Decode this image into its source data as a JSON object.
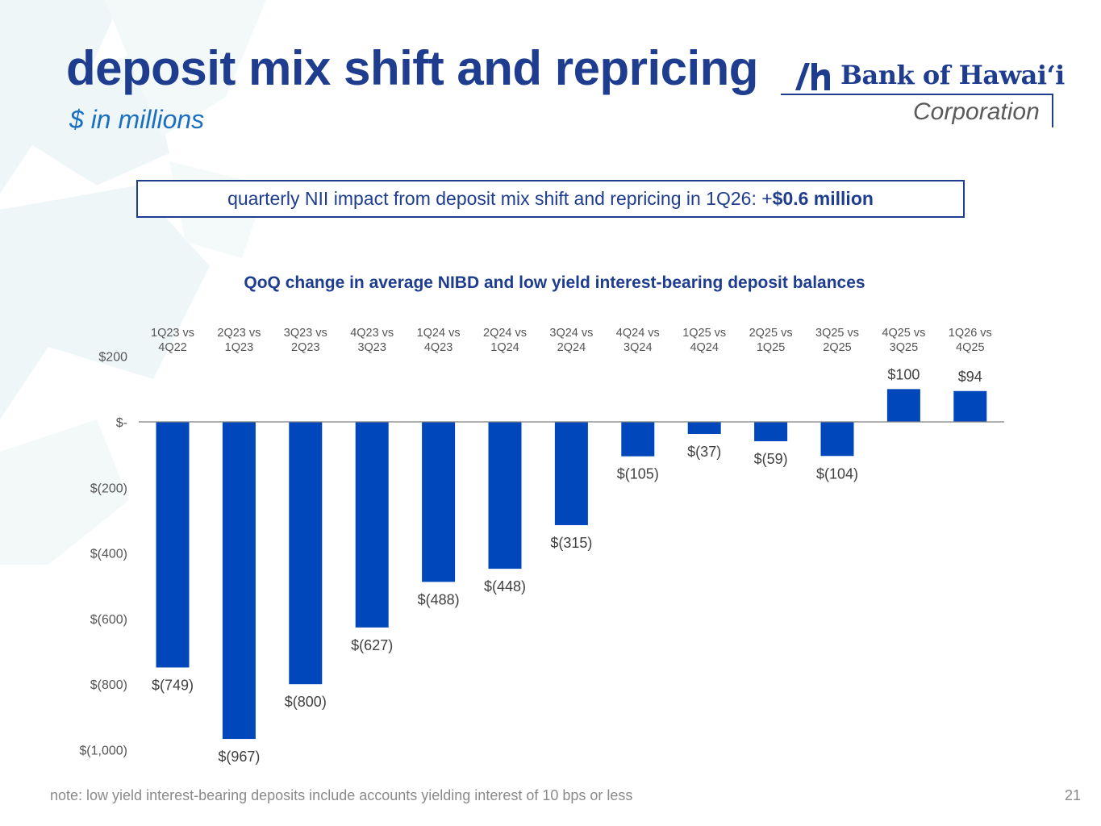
{
  "slide": {
    "title": "deposit mix shift and repricing",
    "subtitle": "$ in millions",
    "logo_name": "Bank of Hawaiʻi",
    "logo_corp": "Corporation",
    "callout_prefix": "quarterly NII impact from deposit mix shift and repricing in 1Q26: +",
    "callout_value": "$0.6 million",
    "note": "note: low yield interest-bearing deposits include accounts yielding interest of 10 bps or less",
    "page_number": "21"
  },
  "colors": {
    "bar": "#0047bb",
    "title": "#1e3d8f",
    "axis_text": "#555555",
    "label_text": "#404040"
  },
  "chart_data": {
    "type": "bar",
    "title": "QoQ change in average NIBD and low yield interest-bearing deposit balances",
    "categories": [
      [
        "1Q23 vs",
        "4Q22"
      ],
      [
        "2Q23 vs",
        "1Q23"
      ],
      [
        "3Q23 vs",
        "2Q23"
      ],
      [
        "4Q23 vs",
        "3Q23"
      ],
      [
        "1Q24 vs",
        "4Q23"
      ],
      [
        "2Q24 vs",
        "1Q24"
      ],
      [
        "3Q24 vs",
        "2Q24"
      ],
      [
        "4Q24 vs",
        "3Q24"
      ],
      [
        "1Q25 vs",
        "4Q24"
      ],
      [
        "2Q25 vs",
        "1Q25"
      ],
      [
        "3Q25 vs",
        "2Q25"
      ],
      [
        "4Q25 vs",
        "3Q25"
      ],
      [
        "1Q26 vs",
        "4Q25"
      ]
    ],
    "values": [
      -749,
      -967,
      -800,
      -627,
      -488,
      -448,
      -315,
      -105,
      -37,
      -59,
      -104,
      100,
      94
    ],
    "data_labels": [
      "$(749)",
      "$(967)",
      "$(800)",
      "$(627)",
      "$(488)",
      "$(448)",
      "$(315)",
      "$(105)",
      "$(37)",
      "$(59)",
      "$(104)",
      "$100",
      "$94"
    ],
    "y_ticks": [
      200,
      0,
      -200,
      -400,
      -600,
      -800,
      -1000
    ],
    "y_tick_labels": [
      "$200",
      "$-",
      "$(200)",
      "$(400)",
      "$(600)",
      "$(800)",
      "$(1,000)"
    ],
    "ylim": [
      -1000,
      200
    ],
    "xlabel": "",
    "ylabel": "",
    "category_labels_position": "top",
    "grid": false
  }
}
